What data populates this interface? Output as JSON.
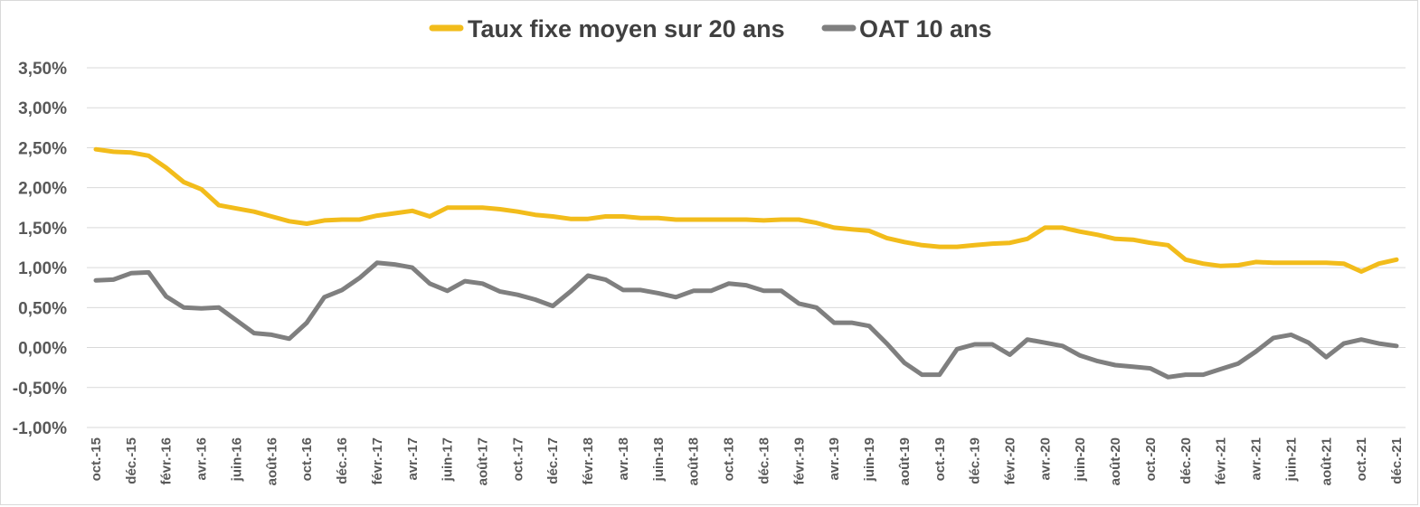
{
  "chart_data": {
    "type": "line",
    "title": "",
    "xlabel": "",
    "ylabel": "",
    "ylim": [
      -1.0,
      3.5
    ],
    "yticks": [
      {
        "value": 3.5,
        "label": "3,50%"
      },
      {
        "value": 3.0,
        "label": "3,00%"
      },
      {
        "value": 2.5,
        "label": "2,50%"
      },
      {
        "value": 2.0,
        "label": "2,00%"
      },
      {
        "value": 1.5,
        "label": "1,50%"
      },
      {
        "value": 1.0,
        "label": "1,00%"
      },
      {
        "value": 0.5,
        "label": "0,50%"
      },
      {
        "value": 0.0,
        "label": "0,00%"
      },
      {
        "value": -0.5,
        "label": "-0,50%"
      },
      {
        "value": -1.0,
        "label": "-1,00%"
      }
    ],
    "grid": true,
    "legend_position": "top-center",
    "categories": [
      "oct.-15",
      "nov.-15",
      "déc.-15",
      "janv.-16",
      "févr.-16",
      "mars-16",
      "avr.-16",
      "mai-16",
      "juin-16",
      "juil.-16",
      "août-16",
      "sept.-16",
      "oct.-16",
      "nov.-16",
      "déc.-16",
      "janv.-17",
      "févr.-17",
      "mars-17",
      "avr.-17",
      "mai-17",
      "juin-17",
      "juil.-17",
      "août-17",
      "sept.-17",
      "oct.-17",
      "nov.-17",
      "déc.-17",
      "janv.-18",
      "févr.-18",
      "mars-18",
      "avr.-18",
      "mai-18",
      "juin-18",
      "juil.-18",
      "août-18",
      "sept.-18",
      "oct.-18",
      "nov.-18",
      "déc.-18",
      "janv.-19",
      "févr.-19",
      "mars-19",
      "avr.-19",
      "mai-19",
      "juin-19",
      "juil.-19",
      "août-19",
      "sept.-19",
      "oct.-19",
      "nov.-19",
      "déc.-19",
      "janv.-20",
      "févr.-20",
      "mars-20",
      "avr.-20",
      "mai-20",
      "juin-20",
      "juil.-20",
      "août-20",
      "sept.-20",
      "oct.-20",
      "nov.-20",
      "déc.-20",
      "janv.-21",
      "févr.-21",
      "mars-21",
      "avr.-21",
      "mai-21",
      "juin-21",
      "juil.-21",
      "août-21",
      "sept.-21",
      "oct.-21",
      "nov.-21",
      "déc.-21"
    ],
    "x_tick_labels": [
      "oct.-15",
      "déc.-15",
      "févr.-16",
      "avr.-16",
      "juin-16",
      "août-16",
      "oct.-16",
      "déc.-16",
      "févr.-17",
      "avr.-17",
      "juin-17",
      "août-17",
      "oct.-17",
      "déc.-17",
      "févr.-18",
      "avr.-18",
      "juin-18",
      "août-18",
      "oct.-18",
      "déc.-18",
      "févr.-19",
      "avr.-19",
      "juin-19",
      "août-19",
      "oct.-19",
      "déc.-19",
      "févr.-20",
      "avr.-20",
      "juin-20",
      "août-20",
      "oct.-20",
      "déc.-20",
      "févr.-21",
      "avr.-21",
      "juin-21",
      "août-21",
      "oct.-21",
      "déc.-21"
    ],
    "series": [
      {
        "name": "Taux fixe moyen sur 20 ans",
        "color": "#F2BC1B",
        "values": [
          2.48,
          2.45,
          2.44,
          2.4,
          2.25,
          2.07,
          1.98,
          1.78,
          1.74,
          1.7,
          1.64,
          1.58,
          1.55,
          1.59,
          1.6,
          1.6,
          1.65,
          1.68,
          1.71,
          1.64,
          1.75,
          1.75,
          1.75,
          1.73,
          1.7,
          1.66,
          1.64,
          1.61,
          1.61,
          1.64,
          1.64,
          1.62,
          1.62,
          1.6,
          1.6,
          1.6,
          1.6,
          1.6,
          1.59,
          1.6,
          1.6,
          1.56,
          1.5,
          1.48,
          1.46,
          1.37,
          1.32,
          1.28,
          1.26,
          1.26,
          1.28,
          1.3,
          1.31,
          1.36,
          1.5,
          1.5,
          1.45,
          1.41,
          1.36,
          1.35,
          1.31,
          1.28,
          1.1,
          1.05,
          1.02,
          1.03,
          1.07,
          1.06,
          1.06,
          1.06,
          1.06,
          1.05,
          0.95,
          1.05,
          1.1
        ]
      },
      {
        "name": "OAT 10 ans",
        "color": "#7F7F7F",
        "values": [
          0.84,
          0.85,
          0.93,
          0.94,
          0.64,
          0.5,
          0.49,
          0.5,
          0.34,
          0.18,
          0.16,
          0.11,
          0.31,
          0.63,
          0.72,
          0.87,
          1.06,
          1.04,
          1.0,
          0.8,
          0.71,
          0.83,
          0.8,
          0.7,
          0.66,
          0.6,
          0.52,
          0.7,
          0.9,
          0.85,
          0.72,
          0.72,
          0.68,
          0.63,
          0.71,
          0.71,
          0.8,
          0.78,
          0.71,
          0.71,
          0.55,
          0.5,
          0.31,
          0.31,
          0.27,
          0.05,
          -0.19,
          -0.34,
          -0.34,
          -0.02,
          0.04,
          0.04,
          -0.09,
          0.1,
          0.06,
          0.02,
          -0.1,
          -0.17,
          -0.22,
          -0.24,
          -0.26,
          -0.37,
          -0.34,
          -0.34,
          -0.27,
          -0.2,
          -0.05,
          0.12,
          0.16,
          0.06,
          -0.12,
          0.05,
          0.1,
          0.05,
          0.02
        ]
      }
    ]
  }
}
